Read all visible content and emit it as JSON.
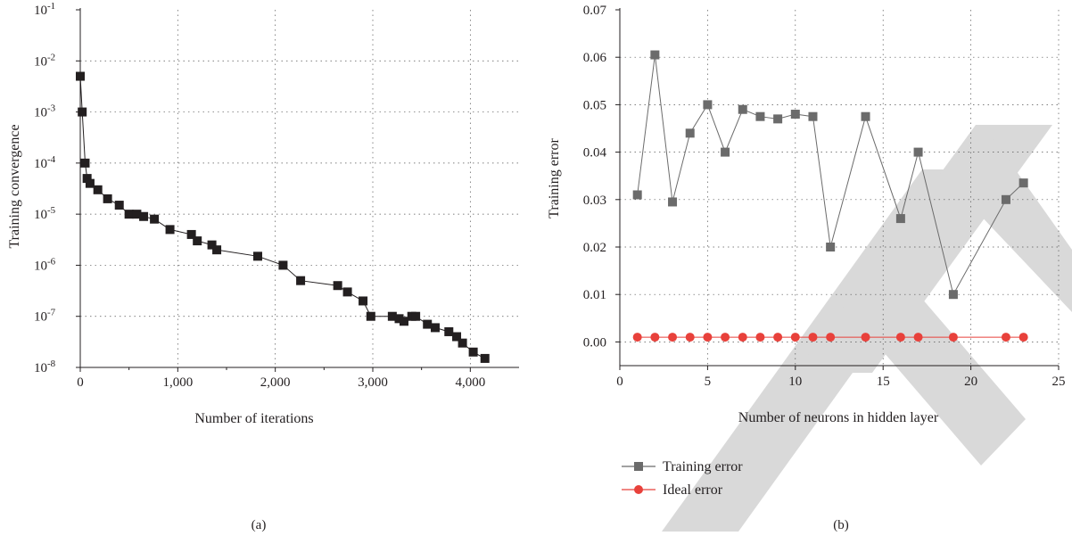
{
  "chart_data": [
    {
      "panel_label": "(a)",
      "type": "line",
      "xlabel": "Number of iterations",
      "ylabel": "Training convergence",
      "xlim": [
        0,
        4500
      ],
      "ylim": [
        1e-08,
        0.1
      ],
      "y_scale": "log",
      "grid": true,
      "x_ticks": [
        0,
        1000,
        2000,
        3000,
        4000
      ],
      "x_tick_labels": [
        "0",
        "1,000",
        "2,000",
        "3,000",
        "4,000"
      ],
      "y_ticks": [
        1e-08,
        1e-07,
        1e-06,
        1e-05,
        0.0001,
        0.001,
        0.01,
        0.1
      ],
      "y_tick_labels": [
        {
          "base": "10",
          "exp": "-8"
        },
        {
          "base": "10",
          "exp": "-7"
        },
        {
          "base": "10",
          "exp": "-6"
        },
        {
          "base": "10",
          "exp": "-5"
        },
        {
          "base": "10",
          "exp": "-4"
        },
        {
          "base": "10",
          "exp": "-3"
        },
        {
          "base": "10",
          "exp": "-2"
        },
        {
          "base": "10",
          "exp": "-1"
        }
      ],
      "series": [
        {
          "color": "#231f20",
          "marker": "square",
          "points": [
            [
              0,
              0.005
            ],
            [
              20,
              0.001
            ],
            [
              50,
              0.0001
            ],
            [
              70,
              5e-05
            ],
            [
              100,
              4e-05
            ],
            [
              180,
              3e-05
            ],
            [
              280,
              2e-05
            ],
            [
              400,
              1.5e-05
            ],
            [
              500,
              1e-05
            ],
            [
              580,
              1e-05
            ],
            [
              650,
              9e-06
            ],
            [
              760,
              8e-06
            ],
            [
              920,
              5e-06
            ],
            [
              1140,
              4e-06
            ],
            [
              1200,
              3e-06
            ],
            [
              1350,
              2.5e-06
            ],
            [
              1400,
              2e-06
            ],
            [
              1820,
              1.5e-06
            ],
            [
              2080,
              1e-06
            ],
            [
              2260,
              5e-07
            ],
            [
              2640,
              4e-07
            ],
            [
              2740,
              3e-07
            ],
            [
              2900,
              2e-07
            ],
            [
              2980,
              1e-07
            ],
            [
              3200,
              1e-07
            ],
            [
              3270,
              9e-08
            ],
            [
              3320,
              8e-08
            ],
            [
              3400,
              1e-07
            ],
            [
              3440,
              1e-07
            ],
            [
              3560,
              7e-08
            ],
            [
              3640,
              6e-08
            ],
            [
              3780,
              5e-08
            ],
            [
              3860,
              4e-08
            ],
            [
              3920,
              3e-08
            ],
            [
              4030,
              2e-08
            ],
            [
              4150,
              1.5e-08
            ]
          ]
        }
      ]
    },
    {
      "panel_label": "(b)",
      "type": "line",
      "xlabel": "Number of neurons in hidden layer",
      "ylabel": "Training error",
      "xlim": [
        0,
        25
      ],
      "ylim": [
        -0.005,
        0.07
      ],
      "grid": true,
      "x_ticks": [
        0,
        5,
        10,
        15,
        20,
        25
      ],
      "x_tick_labels": [
        "0",
        "5",
        "10",
        "15",
        "20",
        "25"
      ],
      "y_ticks": [
        0,
        0.01,
        0.02,
        0.03,
        0.04,
        0.05,
        0.06,
        0.07
      ],
      "y_tick_labels": [
        "0.00",
        "0.01",
        "0.02",
        "0.03",
        "0.04",
        "0.05",
        "0.06",
        "0.07"
      ],
      "legend_position": "bottom-left",
      "categories_x": [
        1,
        2,
        3,
        4,
        5,
        6,
        7,
        8,
        9,
        10,
        11,
        12,
        14,
        16,
        17,
        19,
        22,
        23
      ],
      "series": [
        {
          "name": "Training error",
          "color": "#6b6b6b",
          "marker": "square",
          "values": [
            0.031,
            0.0605,
            0.0295,
            0.044,
            0.05,
            0.04,
            0.049,
            0.0475,
            0.047,
            0.048,
            0.0475,
            0.02,
            0.0475,
            0.026,
            0.04,
            0.01,
            0.03,
            0.0335
          ]
        },
        {
          "name": "Ideal error",
          "color": "#e8413b",
          "marker": "circle",
          "values": [
            0.001,
            0.001,
            0.001,
            0.001,
            0.001,
            0.001,
            0.001,
            0.001,
            0.001,
            0.001,
            0.001,
            0.001,
            0.001,
            0.001,
            0.001,
            0.001,
            0.001,
            0.001
          ]
        }
      ]
    }
  ]
}
